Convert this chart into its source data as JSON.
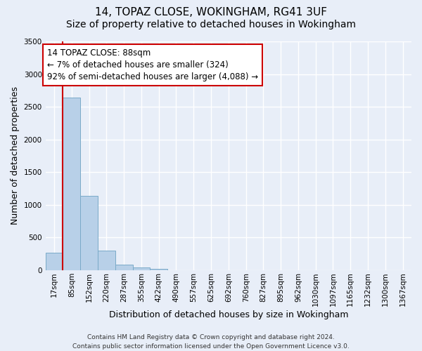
{
  "title_line1": "14, TOPAZ CLOSE, WOKINGHAM, RG41 3UF",
  "title_line2": "Size of property relative to detached houses in Wokingham",
  "xlabel": "Distribution of detached houses by size in Wokingham",
  "ylabel": "Number of detached properties",
  "footnote_line1": "Contains HM Land Registry data © Crown copyright and database right 2024.",
  "footnote_line2": "Contains public sector information licensed under the Open Government Licence v3.0.",
  "bar_labels": [
    "17sqm",
    "85sqm",
    "152sqm",
    "220sqm",
    "287sqm",
    "355sqm",
    "422sqm",
    "490sqm",
    "557sqm",
    "625sqm",
    "692sqm",
    "760sqm",
    "827sqm",
    "895sqm",
    "962sqm",
    "1030sqm",
    "1097sqm",
    "1165sqm",
    "1232sqm",
    "1300sqm",
    "1367sqm"
  ],
  "bar_values": [
    270,
    2640,
    1140,
    295,
    90,
    40,
    25,
    0,
    0,
    0,
    0,
    0,
    0,
    0,
    0,
    0,
    0,
    0,
    0,
    0,
    0
  ],
  "bar_color": "#b8d0e8",
  "bar_edge_color": "#7aaac8",
  "ylim": [
    0,
    3500
  ],
  "yticks": [
    0,
    500,
    1000,
    1500,
    2000,
    2500,
    3000,
    3500
  ],
  "vline_color": "#cc0000",
  "annotation_text": "14 TOPAZ CLOSE: 88sqm\n← 7% of detached houses are smaller (324)\n92% of semi-detached houses are larger (4,088) →",
  "annotation_box_color": "#ffffff",
  "annotation_box_edge": "#cc0000",
  "background_color": "#e8eef8",
  "grid_color": "#ffffff",
  "title_fontsize": 11,
  "subtitle_fontsize": 10,
  "axis_label_fontsize": 9,
  "tick_fontsize": 7.5,
  "annotation_fontsize": 8.5,
  "footnote_fontsize": 6.5
}
